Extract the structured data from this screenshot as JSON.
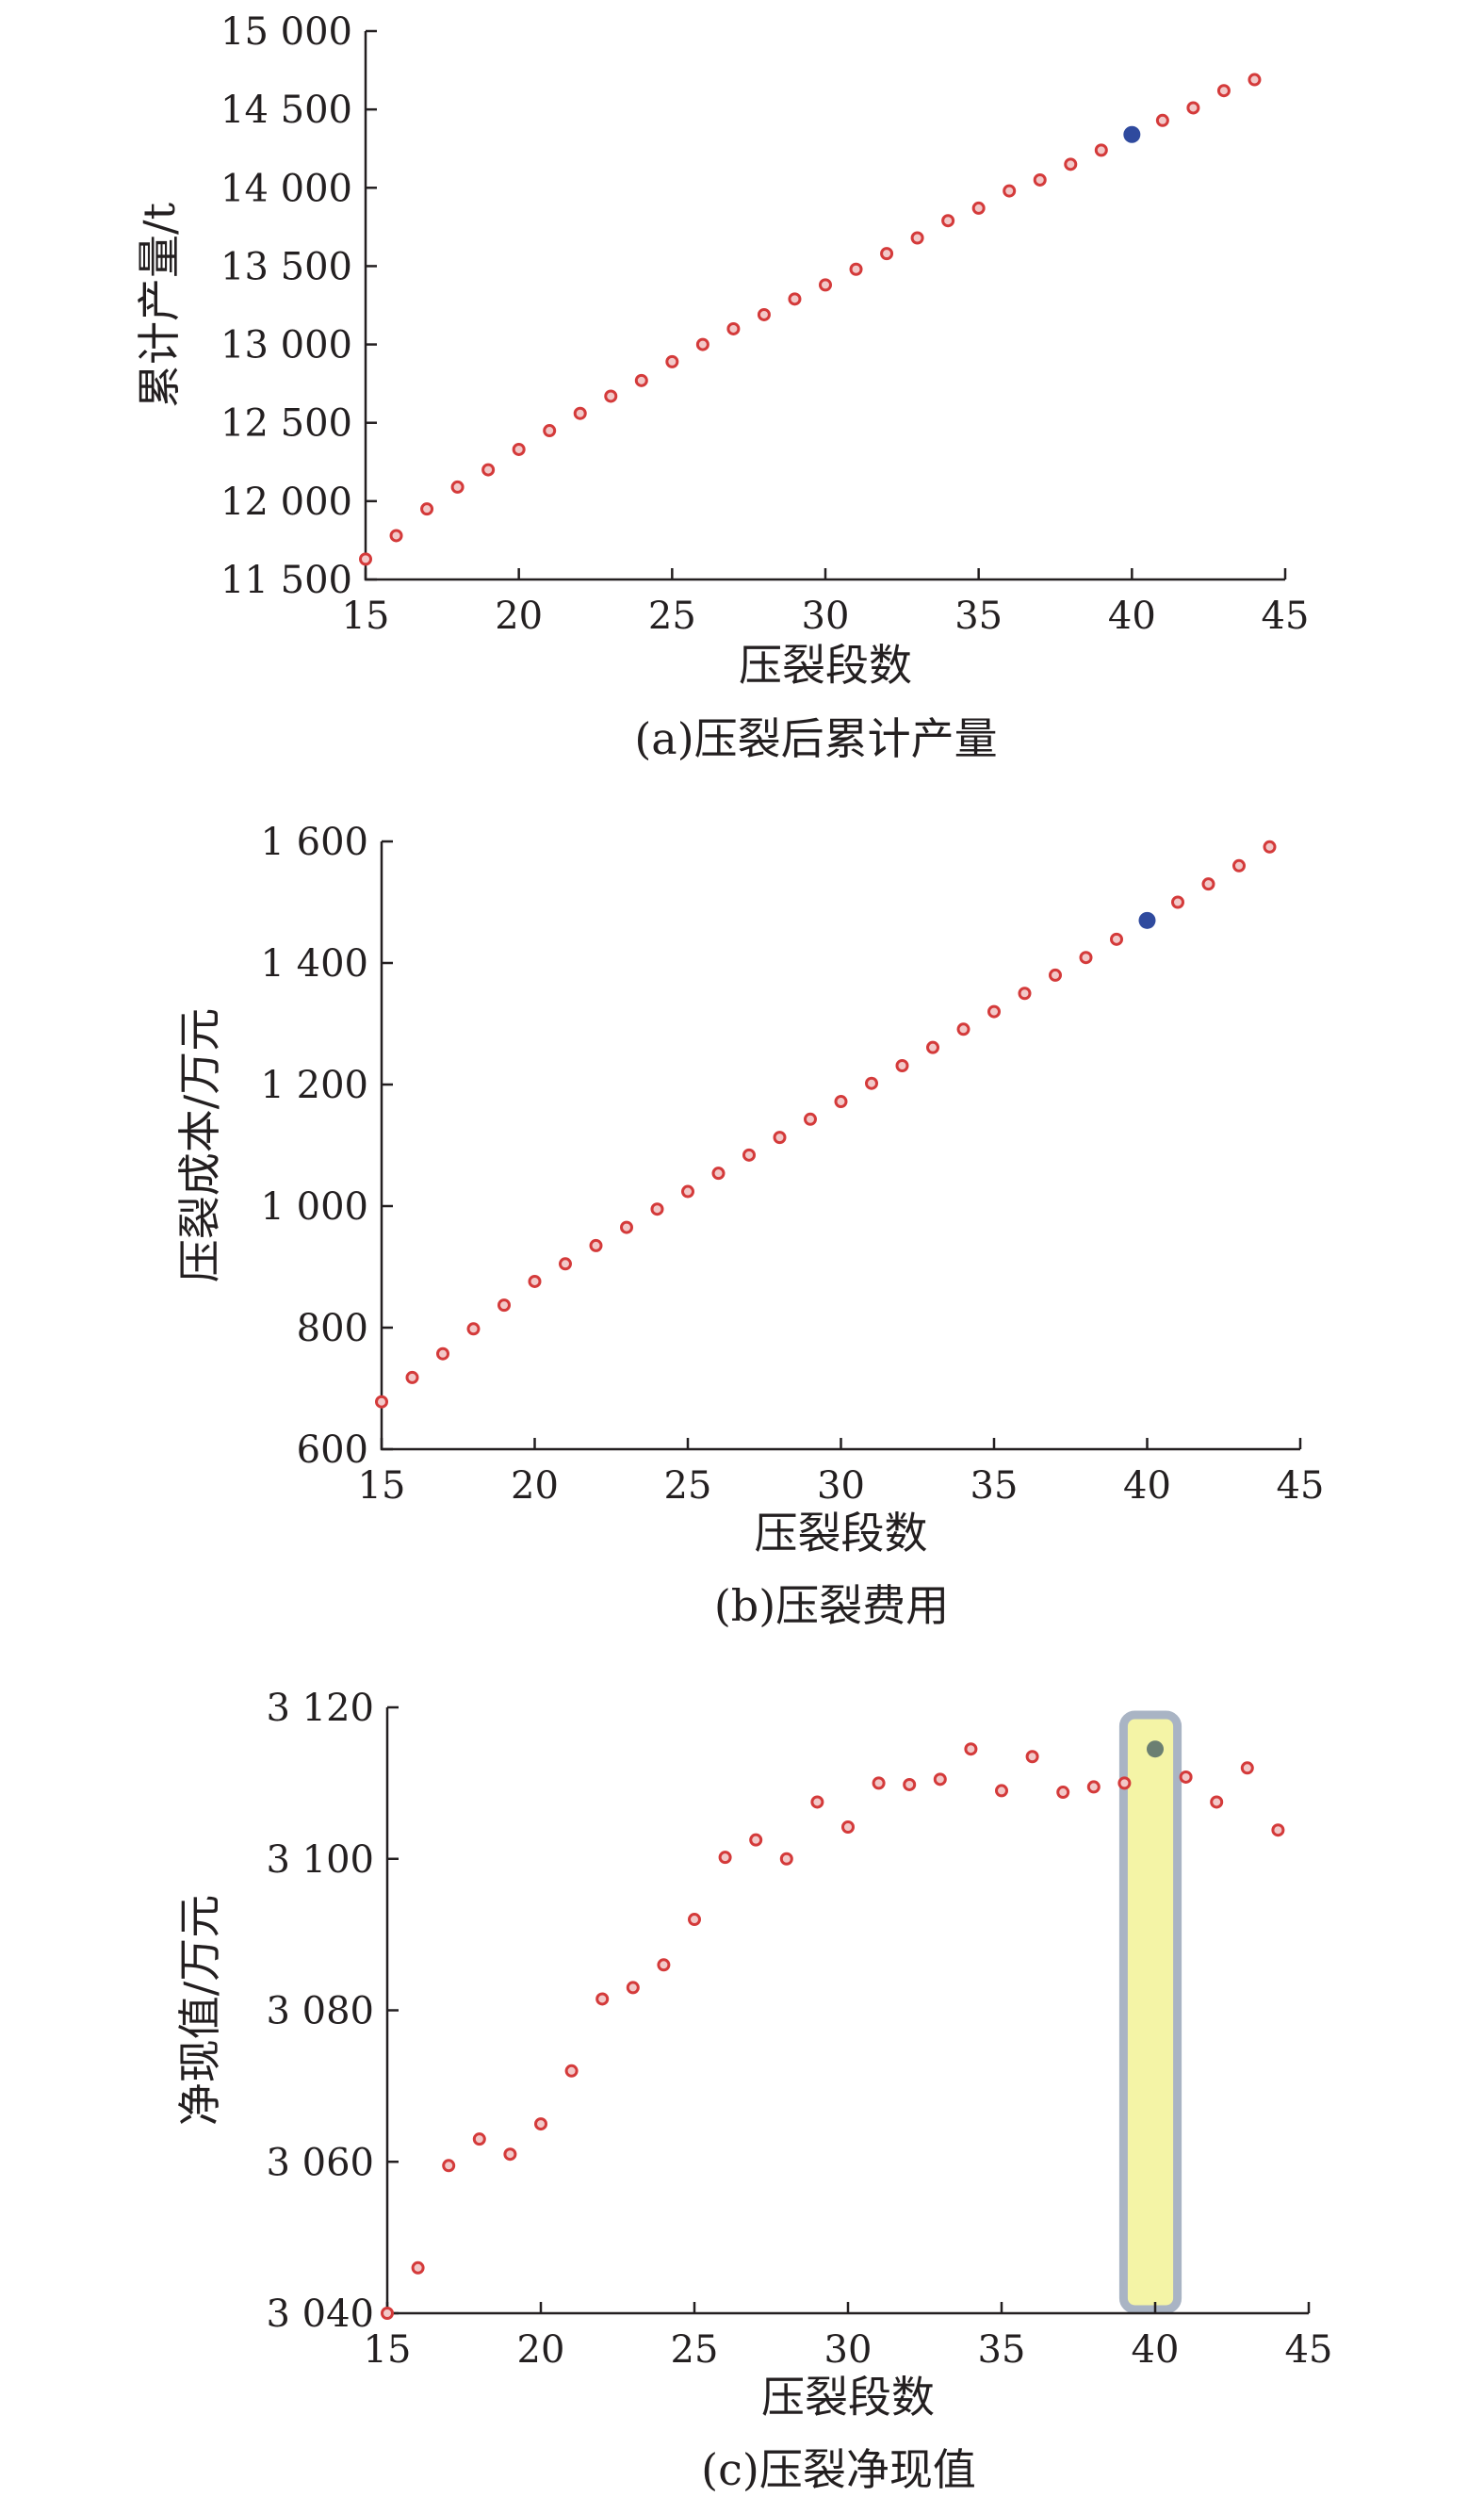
{
  "colors": {
    "normal_marker": "#d43a3a",
    "highlight_marker": "#2f4a9e",
    "highlight_marker_c": "#6b7f72",
    "band_fill": "#f4f4a6",
    "band_stroke": "#a9b4c4",
    "axis": "#231f20"
  },
  "chart_data": [
    {
      "id": "a",
      "type": "scatter",
      "caption": "(a)压裂后累计产量",
      "xlabel": "压裂段数",
      "ylabel": "累计产量/t",
      "xlim": [
        15,
        45
      ],
      "ylim": [
        11500,
        15000
      ],
      "xticks": [
        15,
        20,
        25,
        30,
        35,
        40,
        45
      ],
      "xtick_labels": [
        "15",
        "20",
        "25",
        "30",
        "35",
        "40",
        "45"
      ],
      "yticks": [
        11500,
        12000,
        12500,
        13000,
        13500,
        14000,
        14500,
        15000
      ],
      "ytick_labels": [
        "11 500",
        "12 000",
        "12 500",
        "13 000",
        "13 500",
        "14 000",
        "14 500",
        "15 000"
      ],
      "x": [
        15,
        16,
        17,
        18,
        19,
        20,
        21,
        22,
        23,
        24,
        25,
        26,
        27,
        28,
        29,
        30,
        31,
        32,
        33,
        34,
        35,
        36,
        37,
        38,
        39,
        40,
        41,
        42,
        43,
        44
      ],
      "y": [
        11630,
        11780,
        11950,
        12090,
        12200,
        12330,
        12450,
        12560,
        12670,
        12770,
        12890,
        13000,
        13100,
        13190,
        13290,
        13380,
        13480,
        13580,
        13680,
        13790,
        13870,
        13980,
        14050,
        14150,
        14240,
        14340,
        14430,
        14510,
        14620,
        14690
      ],
      "highlight_x": 40,
      "highlight_band": false,
      "grid": false
    },
    {
      "id": "b",
      "type": "scatter",
      "caption": "(b)压裂费用",
      "xlabel": "压裂段数",
      "ylabel": "压裂成本/万元",
      "xlim": [
        15,
        45
      ],
      "ylim": [
        600,
        1600
      ],
      "xticks": [
        15,
        20,
        25,
        30,
        35,
        40,
        45
      ],
      "xtick_labels": [
        "15",
        "20",
        "25",
        "30",
        "35",
        "40",
        "45"
      ],
      "yticks": [
        600,
        800,
        1000,
        1200,
        1400,
        1600
      ],
      "ytick_labels": [
        "600",
        "800",
        "1 000",
        "1 200",
        "1 400",
        "1 600"
      ],
      "x": [
        15,
        16,
        17,
        18,
        19,
        20,
        21,
        22,
        23,
        24,
        25,
        26,
        27,
        28,
        29,
        30,
        31,
        32,
        33,
        34,
        35,
        36,
        37,
        38,
        39,
        40,
        41,
        42,
        43,
        44
      ],
      "y": [
        678,
        718,
        757,
        798,
        837,
        876,
        905,
        935,
        965,
        995,
        1024,
        1054,
        1084,
        1113,
        1143,
        1172,
        1202,
        1231,
        1261,
        1291,
        1320,
        1350,
        1380,
        1409,
        1439,
        1470,
        1500,
        1530,
        1560,
        1591
      ],
      "highlight_x": 40,
      "highlight_band": false,
      "grid": false
    },
    {
      "id": "c",
      "type": "scatter",
      "caption": "(c)压裂净现值",
      "xlabel": "压裂段数",
      "ylabel": "净现值/万元",
      "xlim": [
        15,
        45
      ],
      "ylim": [
        3040,
        3120
      ],
      "xticks": [
        15,
        20,
        25,
        30,
        35,
        40,
        45
      ],
      "xtick_labels": [
        "15",
        "20",
        "25",
        "30",
        "35",
        "40",
        "45"
      ],
      "yticks": [
        3040,
        3060,
        3080,
        3100,
        3120
      ],
      "ytick_labels": [
        "3 040",
        "3 060",
        "3 080",
        "3 100",
        "3 120"
      ],
      "x": [
        15,
        16,
        17,
        18,
        19,
        20,
        21,
        22,
        23,
        24,
        25,
        26,
        27,
        28,
        29,
        30,
        31,
        32,
        33,
        34,
        35,
        36,
        37,
        38,
        39,
        40,
        41,
        42,
        43,
        44
      ],
      "y": [
        3040,
        3046,
        3059.5,
        3063,
        3061,
        3065,
        3072,
        3081.5,
        3083,
        3086,
        3092,
        3100.2,
        3102.5,
        3100,
        3107.5,
        3104.2,
        3110,
        3109.8,
        3110.5,
        3114.5,
        3109,
        3113.5,
        3108.8,
        3109.5,
        3110,
        3114.5,
        3110.8,
        3107.5,
        3112,
        3103.8
      ],
      "highlight_x": 40,
      "highlight_band": true,
      "highlight_band_range": [
        39,
        41
      ],
      "grid": false
    }
  ]
}
